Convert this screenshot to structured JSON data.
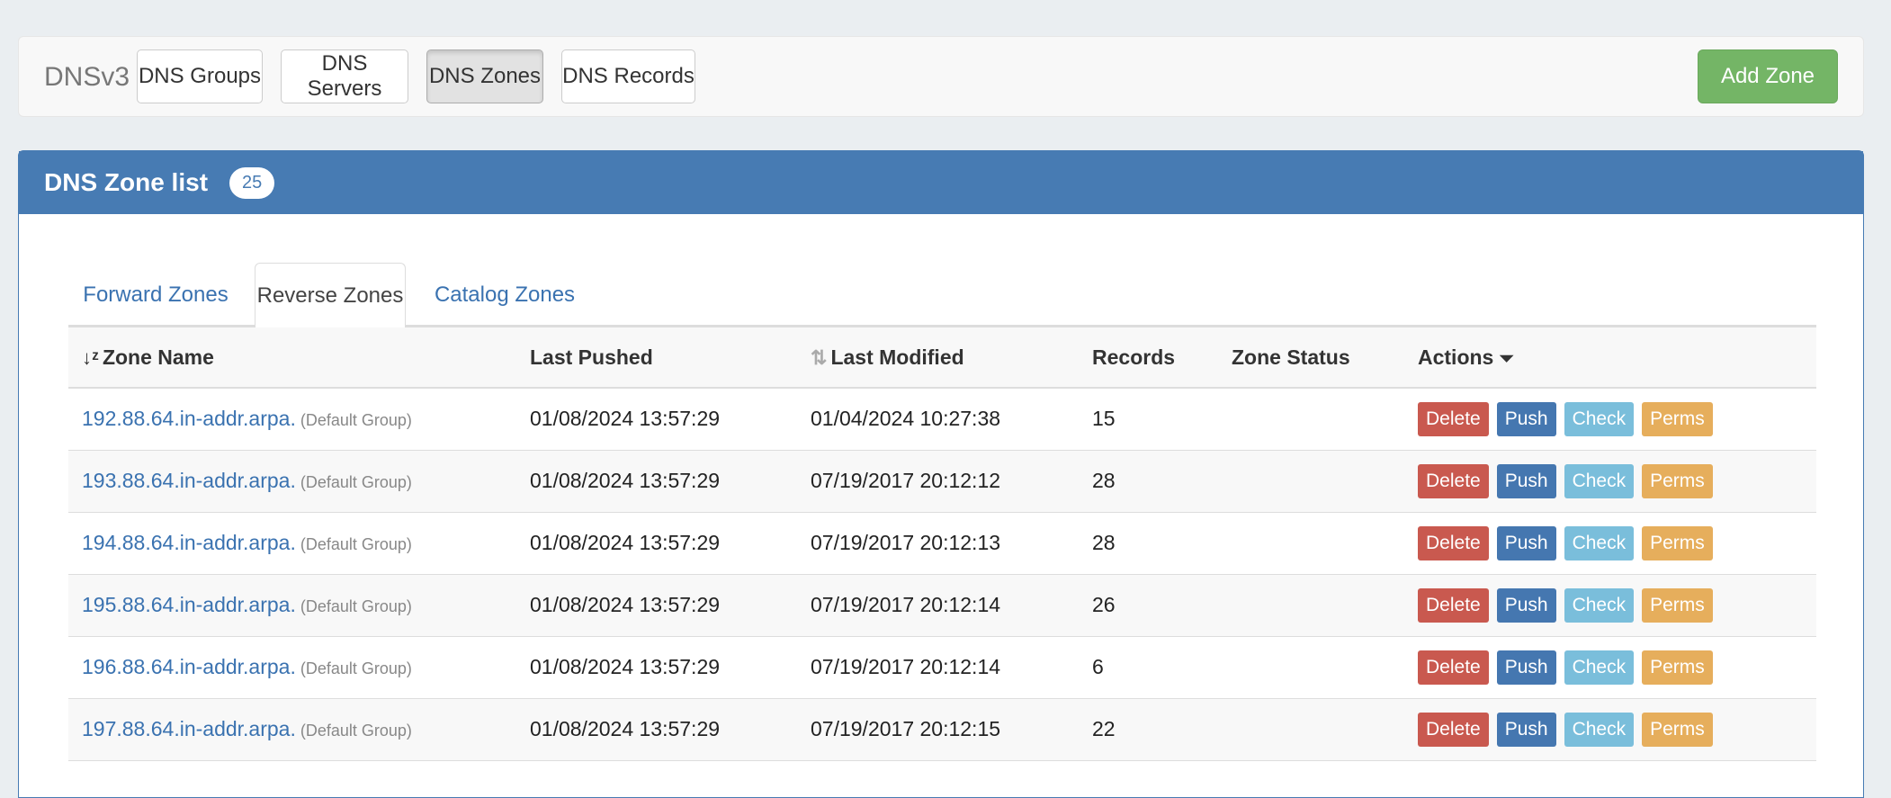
{
  "topbar": {
    "brand": "DNSv3",
    "nav": [
      {
        "label": "DNS Groups",
        "active": false
      },
      {
        "label": "DNS Servers",
        "active": false
      },
      {
        "label": "DNS Zones",
        "active": true
      },
      {
        "label": "DNS Records",
        "active": false
      }
    ],
    "add_label": "Add Zone"
  },
  "panel": {
    "title": "DNS Zone list",
    "count": "25"
  },
  "tabs": [
    {
      "label": "Forward Zones"
    },
    {
      "label": "Reverse Zones",
      "active": true
    },
    {
      "label": "Catalog Zones"
    }
  ],
  "table": {
    "headers": {
      "zone": "Zone Name",
      "pushed": "Last Pushed",
      "modified": "Last Modified",
      "records": "Records",
      "status": "Zone Status",
      "actions": "Actions"
    },
    "actions": {
      "delete": "Delete",
      "push": "Push",
      "check": "Check",
      "perms": "Perms"
    },
    "rows": [
      {
        "zone": "192.88.64.in-addr.arpa.",
        "group": "(Default Group)",
        "pushed": "01/08/2024 13:57:29",
        "modified": "01/04/2024 10:27:38",
        "records": "15",
        "status": ""
      },
      {
        "zone": "193.88.64.in-addr.arpa.",
        "group": "(Default Group)",
        "pushed": "01/08/2024 13:57:29",
        "modified": "07/19/2017 20:12:12",
        "records": "28",
        "status": ""
      },
      {
        "zone": "194.88.64.in-addr.arpa.",
        "group": "(Default Group)",
        "pushed": "01/08/2024 13:57:29",
        "modified": "07/19/2017 20:12:13",
        "records": "28",
        "status": ""
      },
      {
        "zone": "195.88.64.in-addr.arpa.",
        "group": "(Default Group)",
        "pushed": "01/08/2024 13:57:29",
        "modified": "07/19/2017 20:12:14",
        "records": "26",
        "status": ""
      },
      {
        "zone": "196.88.64.in-addr.arpa.",
        "group": "(Default Group)",
        "pushed": "01/08/2024 13:57:29",
        "modified": "07/19/2017 20:12:14",
        "records": "6",
        "status": ""
      },
      {
        "zone": "197.88.64.in-addr.arpa.",
        "group": "(Default Group)",
        "pushed": "01/08/2024 13:57:29",
        "modified": "07/19/2017 20:12:15",
        "records": "22",
        "status": ""
      }
    ]
  },
  "colors": {
    "primary": "#477bb3",
    "success": "#74b566",
    "danger": "#c9594f",
    "info": "#7abedb",
    "warning": "#e6ae5c"
  }
}
